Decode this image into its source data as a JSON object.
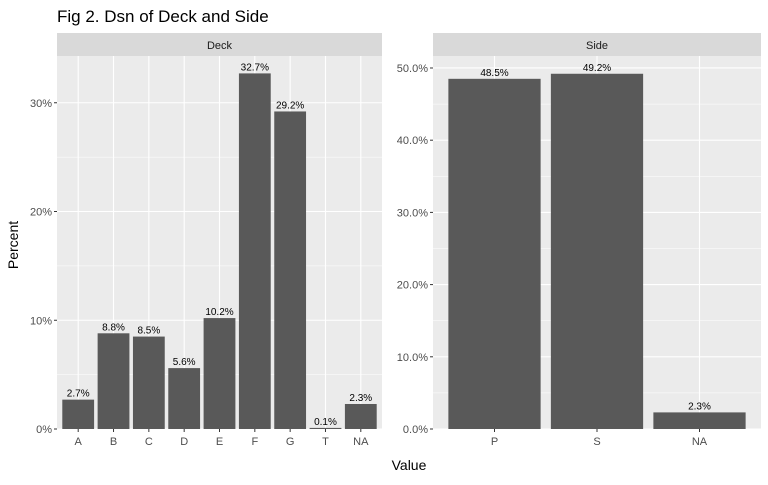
{
  "figure": {
    "title": "Fig 2. Dsn of Deck and Side",
    "xlabel": "Value",
    "ylabel": "Percent"
  },
  "colors": {
    "panel_bg": "#ebebeb",
    "strip_bg": "#d9d9d9",
    "bar": "#595959",
    "grid": "#ffffff",
    "text": "#4d4d4d"
  },
  "chart_data": [
    {
      "type": "bar",
      "facet": "Deck",
      "categories": [
        "A",
        "B",
        "C",
        "D",
        "E",
        "F",
        "G",
        "T",
        "NA"
      ],
      "values": [
        2.7,
        8.8,
        8.5,
        5.6,
        10.2,
        32.7,
        29.2,
        0.1,
        2.3
      ],
      "data_labels": [
        "2.7%",
        "8.8%",
        "8.5%",
        "5.6%",
        "10.2%",
        "32.7%",
        "29.2%",
        "0.1%",
        "2.3%"
      ],
      "yticks": [
        0,
        10,
        20,
        30
      ],
      "ytick_labels": [
        "0%",
        "10%",
        "20%",
        "30%"
      ],
      "ylim": [
        0,
        34.3
      ],
      "grid": true
    },
    {
      "type": "bar",
      "facet": "Side",
      "categories": [
        "P",
        "S",
        "NA"
      ],
      "values": [
        48.5,
        49.2,
        2.3
      ],
      "data_labels": [
        "48.5%",
        "49.2%",
        "2.3%"
      ],
      "yticks": [
        0,
        10,
        20,
        30,
        40,
        50
      ],
      "ytick_labels": [
        "0.0%",
        "10.0%",
        "20.0%",
        "30.0%",
        "40.0%",
        "50.0%"
      ],
      "ylim": [
        0,
        51.66
      ],
      "grid": true
    }
  ]
}
